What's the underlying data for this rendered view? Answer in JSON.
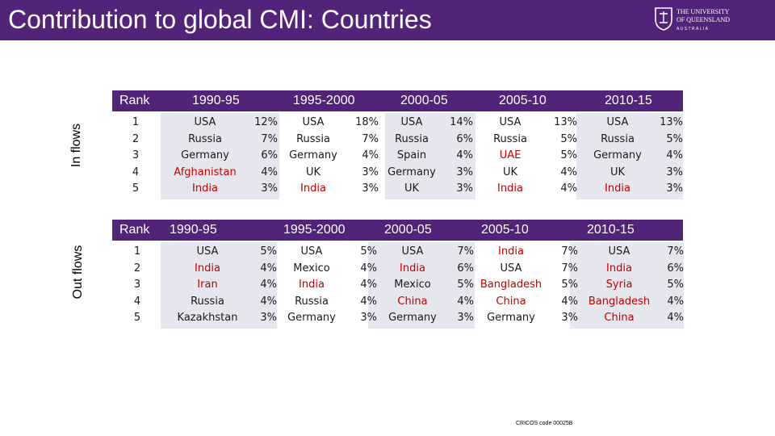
{
  "header": {
    "title": "Contribution to global CMI: Countries"
  },
  "logo": {
    "line1": "THE UNIVERSITY",
    "line2": "OF QUEENSLAND",
    "line3": "AUSTRALIA"
  },
  "colors": {
    "accent": "#51247a",
    "highlight": "#c00000",
    "band": "#e6e6ee"
  },
  "in_flows": {
    "side_label": "In flows",
    "rank_header": "Rank",
    "periods": [
      "1990-95",
      "1995-2000",
      "2000-05",
      "2005-10",
      "2010-15"
    ],
    "ranks": [
      "1",
      "2",
      "3",
      "4",
      "5"
    ],
    "columns": [
      {
        "countries": [
          "USA",
          "Russia",
          "Germany",
          "Afghanistan",
          "India"
        ],
        "pcts": [
          "12%",
          "7%",
          "6%",
          "4%",
          "3%"
        ],
        "highlight": [
          false,
          false,
          false,
          true,
          true
        ]
      },
      {
        "countries": [
          "USA",
          "Russia",
          "Germany",
          "UK",
          "India"
        ],
        "pcts": [
          "18%",
          "7%",
          "4%",
          "3%",
          "3%"
        ],
        "highlight": [
          false,
          false,
          false,
          false,
          true
        ]
      },
      {
        "countries": [
          "USA",
          "Russia",
          "Spain",
          "Germany",
          "UK"
        ],
        "pcts": [
          "14%",
          "6%",
          "4%",
          "3%",
          "3%"
        ],
        "highlight": [
          false,
          false,
          false,
          false,
          false
        ]
      },
      {
        "countries": [
          "USA",
          "Russia",
          "UAE",
          "UK",
          "India"
        ],
        "pcts": [
          "13%",
          "5%",
          "5%",
          "4%",
          "4%"
        ],
        "highlight": [
          false,
          false,
          true,
          false,
          true
        ]
      },
      {
        "countries": [
          "USA",
          "Russia",
          "Germany",
          "UK",
          "India"
        ],
        "pcts": [
          "13%",
          "5%",
          "4%",
          "3%",
          "3%"
        ],
        "highlight": [
          false,
          false,
          false,
          false,
          true
        ]
      }
    ]
  },
  "out_flows": {
    "side_label": "Out flows",
    "rank_header": "Rank",
    "periods": [
      "1990-95",
      "1995-2000",
      "2000-05",
      "2005-10",
      "2010-15"
    ],
    "ranks": [
      "1",
      "2",
      "3",
      "4",
      "5"
    ],
    "columns": [
      {
        "countries": [
          "USA",
          "India",
          "Iran",
          "Russia",
          "Kazakhstan"
        ],
        "pcts": [
          "5%",
          "4%",
          "4%",
          "4%",
          "3%"
        ],
        "highlight": [
          false,
          true,
          true,
          false,
          false
        ]
      },
      {
        "countries": [
          "USA",
          "Mexico",
          "India",
          "Russia",
          "Germany"
        ],
        "pcts": [
          "5%",
          "4%",
          "4%",
          "4%",
          "3%"
        ],
        "highlight": [
          false,
          false,
          true,
          false,
          false
        ]
      },
      {
        "countries": [
          "USA",
          "India",
          "Mexico",
          "China",
          "Germany"
        ],
        "pcts": [
          "7%",
          "6%",
          "5%",
          "4%",
          "3%"
        ],
        "highlight": [
          false,
          true,
          false,
          true,
          false
        ]
      },
      {
        "countries": [
          "India",
          "USA",
          "Bangladesh",
          "China",
          "Germany"
        ],
        "pcts": [
          "7%",
          "7%",
          "5%",
          "4%",
          "3%"
        ],
        "highlight": [
          true,
          false,
          true,
          true,
          false
        ]
      },
      {
        "countries": [
          "USA",
          "India",
          "Syria",
          "Bangladesh",
          "China"
        ],
        "pcts": [
          "7%",
          "6%",
          "5%",
          "4%",
          "4%"
        ],
        "highlight": [
          false,
          true,
          true,
          true,
          true
        ]
      }
    ]
  },
  "footer": {
    "cricos": "CRICOS code 00025B"
  }
}
